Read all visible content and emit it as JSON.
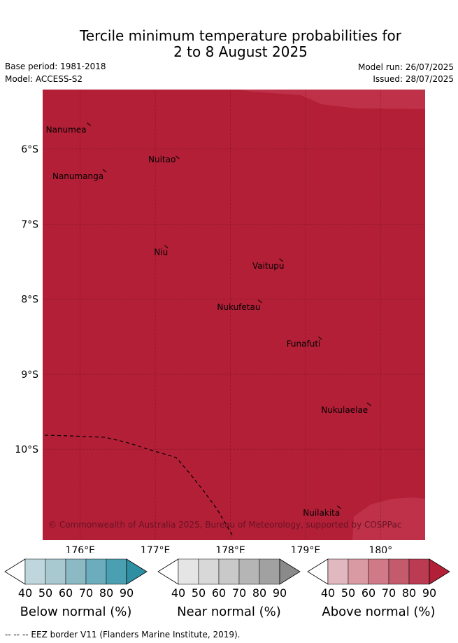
{
  "title": {
    "line1": "Tercile minimum temperature probabilities for",
    "line2": "2 to 8 August 2025"
  },
  "header": {
    "base_period": "Base period: 1981-2018",
    "model": "Model: ACCESS-S2",
    "model_run": "Model run: 26/07/2025",
    "issued": "Issued: 28/07/2025"
  },
  "map": {
    "colors": {
      "dominant_fill": "#b21f37",
      "lighter_fill": "#be3148",
      "grid_line": "#5a0e1c",
      "eez_border": "#000000"
    },
    "lat_labels": [
      "6°S",
      "7°S",
      "8°S",
      "9°S",
      "10°S"
    ],
    "lon_labels": [
      "176°E",
      "177°E",
      "178°E",
      "179°E",
      "180°"
    ],
    "places": [
      {
        "name": "Nanumea",
        "lon": 176.12,
        "lat": -5.67
      },
      {
        "name": "Nuitao",
        "lon": 177.3,
        "lat": -6.11
      },
      {
        "name": "Nanumanga",
        "lon": 176.33,
        "lat": -6.29
      },
      {
        "name": "Niu",
        "lon": 177.15,
        "lat": -7.3
      },
      {
        "name": "Vaitupu",
        "lon": 178.68,
        "lat": -7.48
      },
      {
        "name": "Nukufetau",
        "lon": 178.4,
        "lat": -8.03
      },
      {
        "name": "Funafuti",
        "lon": 179.2,
        "lat": -8.52
      },
      {
        "name": "Nukulaelae",
        "lon": 179.85,
        "lat": -9.4
      },
      {
        "name": "Nuilakita",
        "lon": 179.45,
        "lat": -10.77
      }
    ],
    "copyright": "© Commonwealth of Australia 2025, Bureau of Meteorology, supported by COSPPac"
  },
  "colorbars": [
    {
      "label": "Below normal (%)",
      "ticks": [
        "40",
        "50",
        "60",
        "70",
        "80",
        "90"
      ],
      "colors": [
        "#ffffff",
        "#bfd6dc",
        "#a7c9cf",
        "#8bbac5",
        "#6badbc",
        "#4aa0b1",
        "#2e8fa3"
      ]
    },
    {
      "label": "Near normal (%)",
      "ticks": [
        "40",
        "50",
        "60",
        "70",
        "80",
        "90"
      ],
      "colors": [
        "#ffffff",
        "#e5e5e5",
        "#d8d8d8",
        "#c9c9c9",
        "#b5b5b5",
        "#a1a1a1",
        "#8a8a8a"
      ]
    },
    {
      "label": "Above normal (%)",
      "ticks": [
        "40",
        "50",
        "60",
        "70",
        "80",
        "90"
      ],
      "colors": [
        "#ffffff",
        "#e2b8c0",
        "#d99aa4",
        "#d07a87",
        "#c45b6c",
        "#ba3b52",
        "#b21f37"
      ]
    }
  ],
  "footer": "--  --  -- EEZ border V11 (Flanders Marine Institute, 2019)."
}
